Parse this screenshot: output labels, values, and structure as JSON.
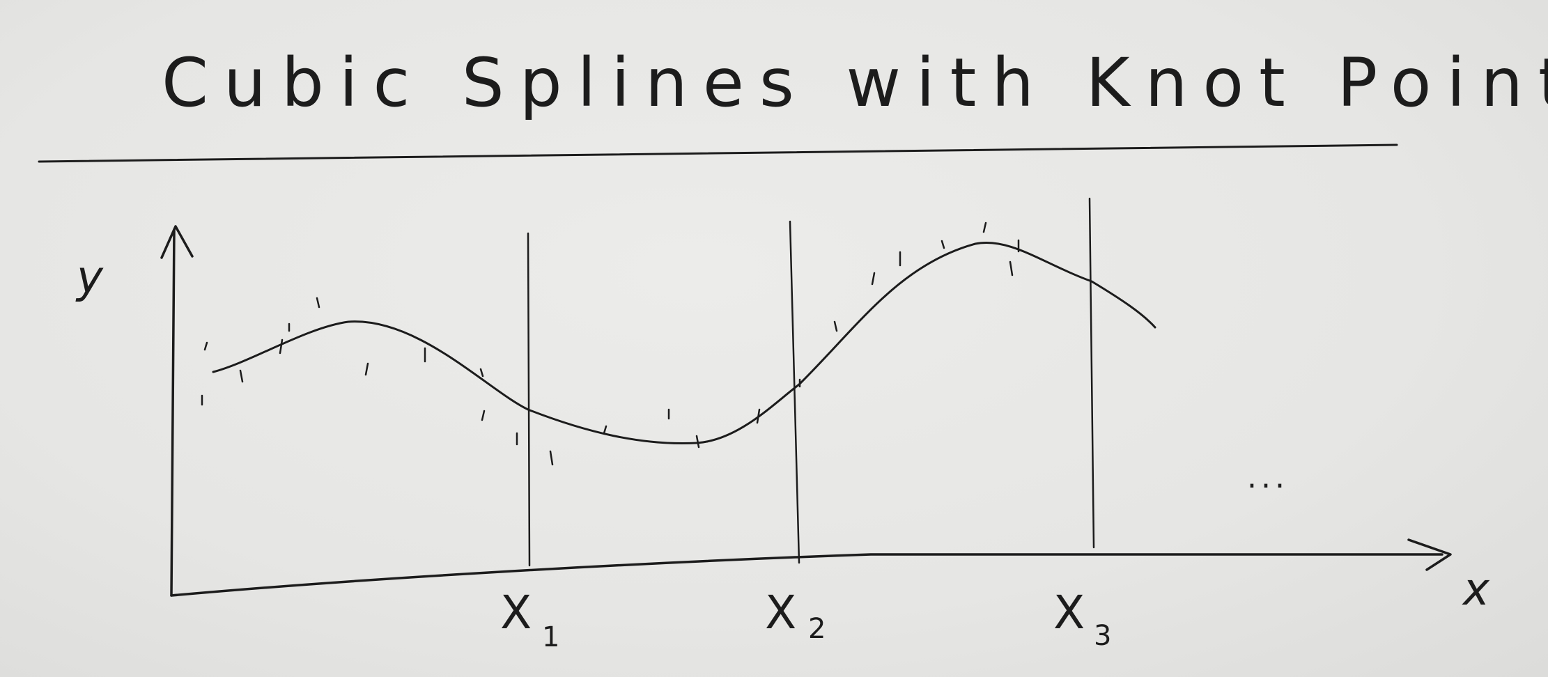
{
  "title": "Cubic Splines with Knot Points",
  "axes": {
    "x_label": "x",
    "y_label": "y"
  },
  "knots": [
    {
      "letter": "X",
      "subscript": "1"
    },
    {
      "letter": "X",
      "subscript": "2"
    },
    {
      "letter": "X",
      "subscript": "3"
    }
  ],
  "continuation": "...",
  "colors": {
    "ink": "#1c1c1c",
    "paper": "#e8e8e6"
  }
}
